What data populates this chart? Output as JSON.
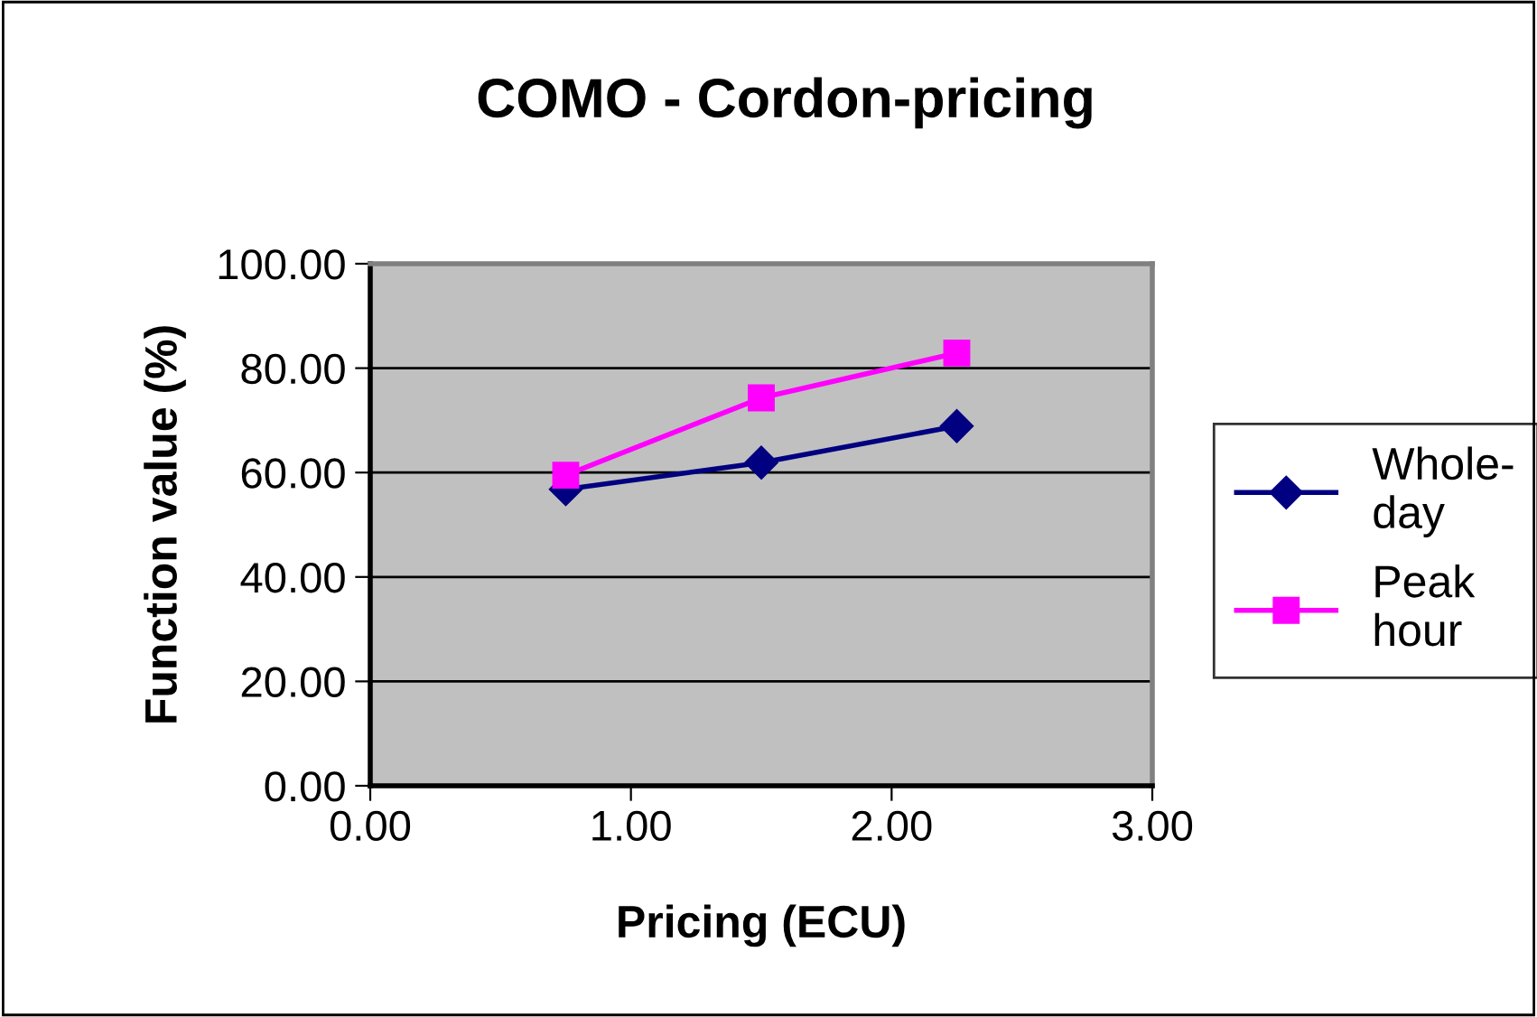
{
  "chart_data": {
    "type": "line",
    "title": "COMO - Cordon-pricing",
    "xlabel": "Pricing (ECU)",
    "ylabel": "Function value (%)",
    "x": [
      0.75,
      1.5,
      2.25
    ],
    "series": [
      {
        "name": "Whole-\nday",
        "color": "#000080",
        "marker": "diamond",
        "values": [
          56.8,
          61.9,
          68.9
        ]
      },
      {
        "name": "Peak\nhour",
        "color": "#ff00ff",
        "marker": "square",
        "values": [
          59.5,
          74.3,
          82.9
        ]
      }
    ],
    "xlim": [
      0,
      3
    ],
    "xticks": [
      {
        "value": 0,
        "label": "0.00"
      },
      {
        "value": 1,
        "label": "1.00"
      },
      {
        "value": 2,
        "label": "2.00"
      },
      {
        "value": 3,
        "label": "3.00"
      }
    ],
    "ylim": [
      0,
      100
    ],
    "yticks": [
      {
        "value": 0,
        "label": "0.00"
      },
      {
        "value": 20,
        "label": "20.00"
      },
      {
        "value": 40,
        "label": "40.00"
      },
      {
        "value": 60,
        "label": "60.00"
      },
      {
        "value": 80,
        "label": "80.00"
      },
      {
        "value": 100,
        "label": "100.00"
      }
    ],
    "grid": "y",
    "legend": "right"
  }
}
